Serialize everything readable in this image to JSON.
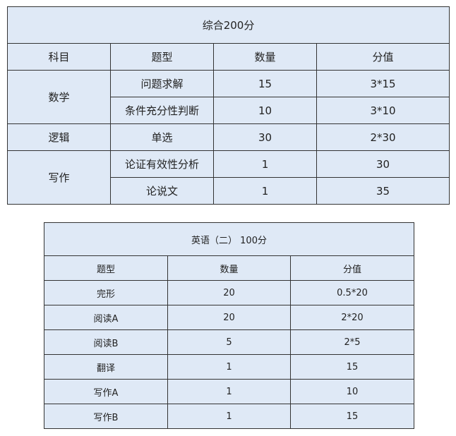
{
  "table1": {
    "title": "综合200分",
    "headers": [
      "科目",
      "题型",
      "数量",
      "分值"
    ],
    "groups": [
      {
        "subject": "数学",
        "rows": [
          [
            "问题求解",
            "15",
            "3*15"
          ],
          [
            "条件充分性判断",
            "10",
            "3*10"
          ]
        ]
      },
      {
        "subject": "逻辑",
        "rows": [
          [
            "单选",
            "30",
            "2*30"
          ]
        ]
      },
      {
        "subject": "写作",
        "rows": [
          [
            "论证有效性分析",
            "1",
            "30"
          ],
          [
            "论说文",
            "1",
            "35"
          ]
        ]
      }
    ]
  },
  "table2": {
    "title": "英语（二） 100分",
    "headers": [
      "题型",
      "数量",
      "分值"
    ],
    "rows": [
      [
        "完形",
        "20",
        "0.5*20"
      ],
      [
        "阅读A",
        "20",
        "2*20"
      ],
      [
        "阅读B",
        "5",
        "2*5"
      ],
      [
        "翻译",
        "1",
        "15"
      ],
      [
        "写作A",
        "1",
        "10"
      ],
      [
        "写作B",
        "1",
        "15"
      ]
    ]
  },
  "colors": {
    "cell_bg": "#dfe9f6",
    "border": "#333333"
  }
}
